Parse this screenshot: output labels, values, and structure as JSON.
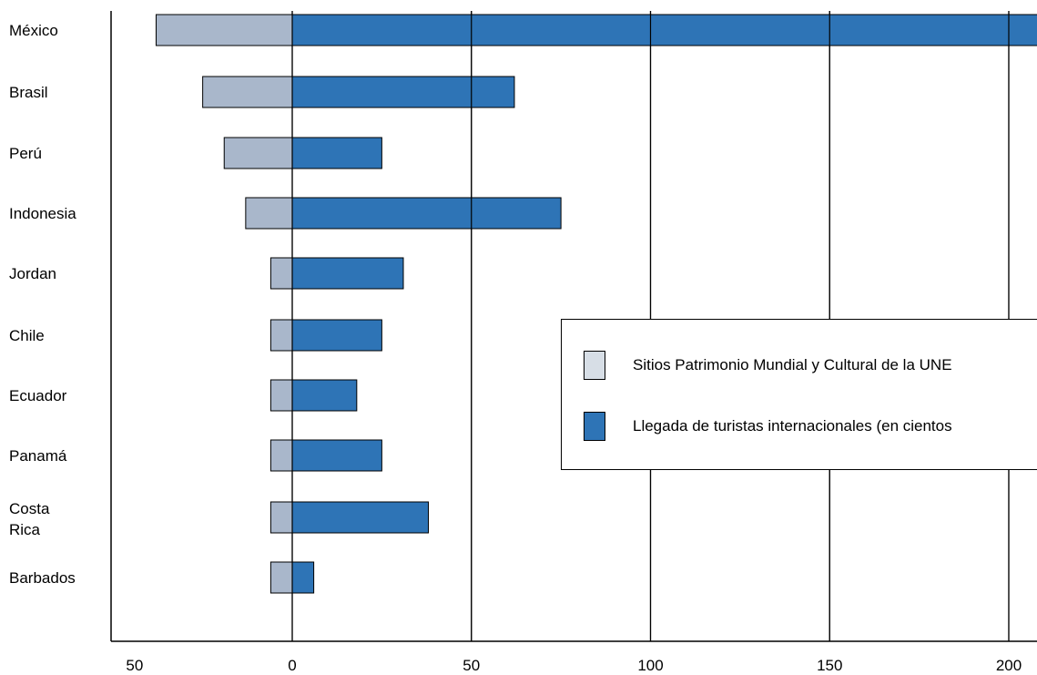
{
  "chart_data": {
    "type": "bar",
    "orientation": "horizontal",
    "categories": [
      "México",
      "Brasil",
      "Perú",
      "Indonesia",
      "Jordan",
      "Chile",
      "Ecuador",
      "Panamá",
      "Costa Rica",
      "Barbados"
    ],
    "series": [
      {
        "name": "Sitios Patrimonio Mundial y Cultural de la UNE",
        "color": "#a9b7cb",
        "values": [
          38,
          25,
          19,
          13,
          6,
          6,
          6,
          6,
          6,
          6
        ]
      },
      {
        "name": "Llegada de turistas internacionales (en cientos",
        "color": "#2e74b6",
        "values": [
          210,
          62,
          25,
          75,
          31,
          25,
          18,
          25,
          38,
          6
        ]
      }
    ],
    "xlim": [
      -50,
      207
    ],
    "xticks": [
      "50",
      "0",
      "50",
      "100",
      "150",
      "200"
    ],
    "grid": true,
    "legend_position": "center-right"
  },
  "legend_swatch_colors": [
    "#d7dee6",
    "#2e74b6"
  ]
}
